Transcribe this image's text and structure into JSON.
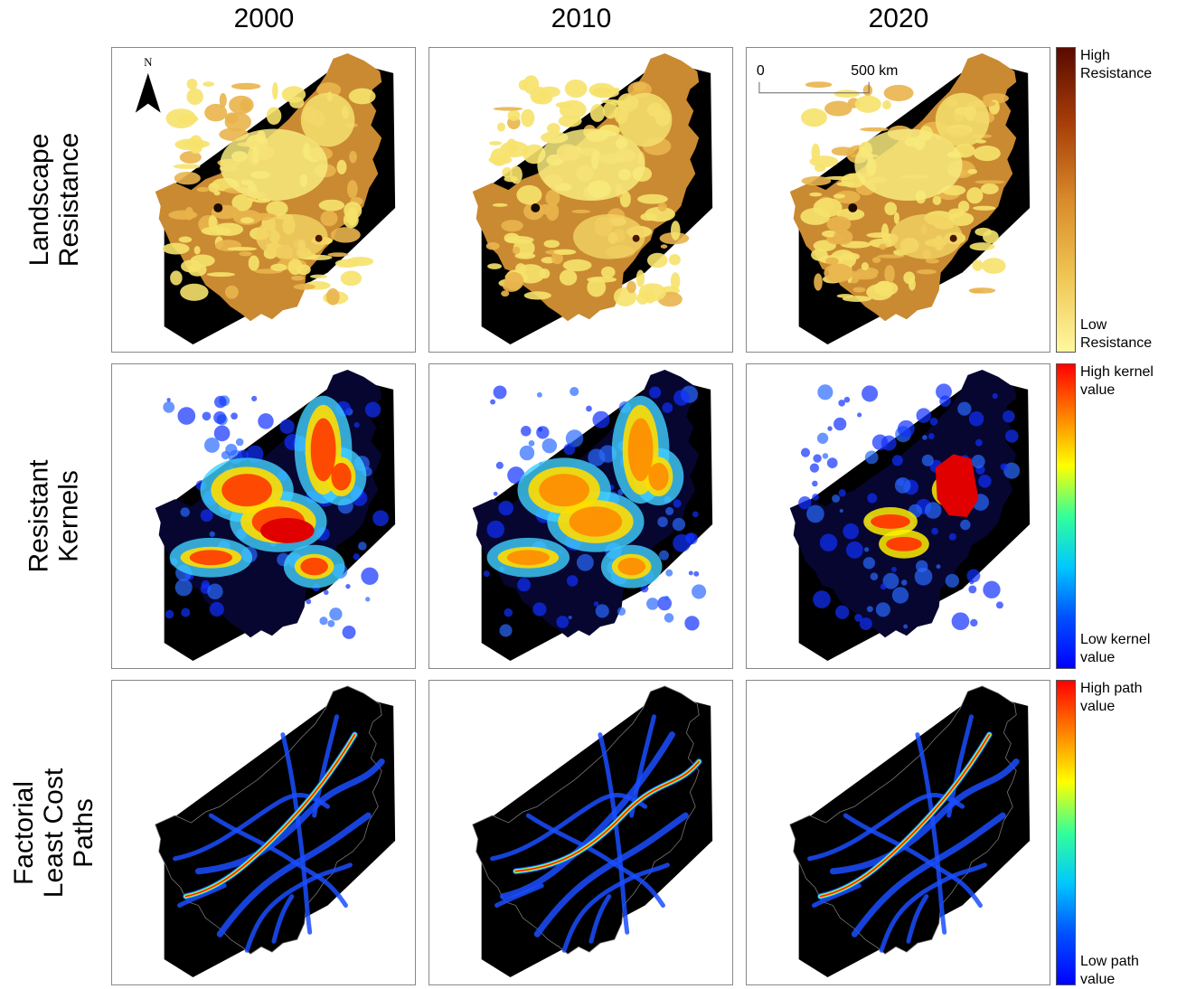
{
  "columns": [
    "2000",
    "2010",
    "2020"
  ],
  "rows": [
    {
      "label_lines": [
        "Landscape",
        "Resistance"
      ],
      "legend": {
        "high_lines": [
          "High",
          "Resistance"
        ],
        "low_lines": [
          "Low",
          "Resistance"
        ],
        "colors": [
          "#5a0a00",
          "#a83e08",
          "#d98a2a",
          "#efc552",
          "#fff8a0"
        ]
      }
    },
    {
      "label_lines": [
        "Resistant",
        "Kernels"
      ],
      "legend": {
        "high_lines": [
          "High kernel",
          "value"
        ],
        "low_lines": [
          "Low kernel",
          "value"
        ],
        "colors": [
          "#ff0000",
          "#ff8000",
          "#ffff00",
          "#33ff99",
          "#00c8ff",
          "#0050ff",
          "#0000ff"
        ]
      }
    },
    {
      "label_lines": [
        "Factorial",
        "Least Cost",
        "Paths"
      ],
      "legend": {
        "high_lines": [
          "High path",
          "value"
        ],
        "low_lines": [
          "Low path",
          "value"
        ],
        "colors": [
          "#ff0000",
          "#ff8000",
          "#ffff00",
          "#33ff99",
          "#00c8ff",
          "#0050ff",
          "#0000ff"
        ]
      }
    }
  ],
  "north_arrow": {
    "label": "N"
  },
  "scale_bar": {
    "start_label": "0",
    "end_label": "500 km"
  }
}
